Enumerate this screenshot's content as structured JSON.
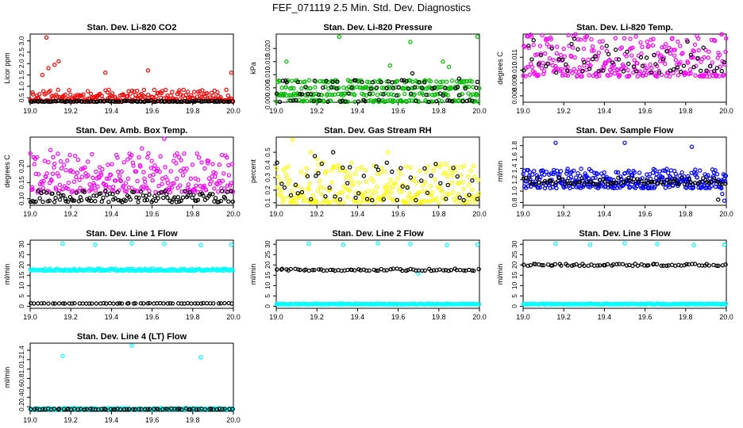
{
  "page": {
    "title": "FEF_071119  2.5 Min. Std. Dev. Diagnostics"
  },
  "chart_data": [
    {
      "type": "scatter",
      "title": "Stan. Dev. Li-820 CO2",
      "ylabel": "Licor ppm",
      "xlim": [
        19.0,
        20.0
      ],
      "ylim": [
        0.3,
        3.3
      ],
      "xticks": [
        "19.0",
        "19.2",
        "19.4",
        "19.6",
        "19.8",
        "20.0"
      ],
      "yticks": [
        "0.5",
        "1.0",
        "1.5",
        "2.0",
        "2.5",
        "3.0"
      ],
      "series": [
        {
          "color": "#ff0000",
          "generator": {
            "base": 0.35,
            "spread": 0.5,
            "floor": 0.32,
            "count": 220,
            "seed": 11
          },
          "outliers": [
            [
              19.08,
              3.15
            ],
            [
              19.12,
              1.95
            ],
            [
              19.14,
              2.1
            ],
            [
              19.09,
              1.8
            ],
            [
              19.58,
              1.7
            ],
            [
              19.99,
              1.6
            ],
            [
              19.37,
              1.6
            ],
            [
              19.06,
              1.5
            ]
          ]
        },
        {
          "color": "#000000",
          "generator": {
            "base": 0.32,
            "spread": 0.05,
            "floor": 0.3,
            "count": 110,
            "seed": 12
          },
          "outliers": []
        }
      ]
    },
    {
      "type": "scatter",
      "title": "Stan. Dev. Li-820 Pressure",
      "ylabel": "kPa",
      "xlim": [
        19.0,
        20.0
      ],
      "ylim": [
        -0.0005,
        0.0255
      ],
      "xticks": [
        "19.0",
        "19.2",
        "19.4",
        "19.6",
        "19.8",
        "20.0"
      ],
      "yticks": [
        "0.000",
        "0.005",
        "0.010",
        "0.015",
        "0.020"
      ],
      "series": [
        {
          "color": "#00bb00",
          "generator": {
            "bands": [
              0.0,
              0.0025,
              0.005,
              0.0075
            ],
            "count": 300,
            "seed": 21
          },
          "outliers": [
            [
              19.31,
              0.0245
            ],
            [
              19.99,
              0.0245
            ],
            [
              19.66,
              0.0225
            ],
            [
              19.05,
              0.015
            ],
            [
              19.56,
              0.0135
            ],
            [
              19.82,
              0.015
            ],
            [
              19.85,
              0.013
            ]
          ]
        },
        {
          "color": "#000000",
          "generator": {
            "bands": [
              0.0,
              0.0025,
              0.005,
              0.0075
            ],
            "count": 80,
            "seed": 22
          },
          "outliers": [
            [
              19.67,
              0.0105
            ],
            [
              19.9,
              0.0085
            ]
          ]
        }
      ]
    },
    {
      "type": "scatter",
      "title": "Stan. Dev. Li-820 Temp.",
      "ylabel": "degrees C",
      "xlim": [
        19.0,
        20.0
      ],
      "ylim": [
        0.0075,
        0.0128
      ],
      "xticks": [
        "19.0",
        "19.2",
        "19.4",
        "19.6",
        "19.8",
        "20.0"
      ],
      "yticks": [
        "0.008",
        "0.009",
        "0.010",
        "0.011"
      ],
      "series": [
        {
          "color": "#ff00ff",
          "generator": {
            "base": 0.0095,
            "spread": 0.0033,
            "floor": 0.0076,
            "count": 300,
            "seed": 31
          },
          "outliers": []
        },
        {
          "color": "#000000",
          "generator": {
            "base": 0.0098,
            "spread": 0.0027,
            "floor": 0.0085,
            "count": 60,
            "seed": 32
          },
          "outliers": []
        }
      ]
    },
    {
      "type": "scatter",
      "title": "Stan. Dev. Amb. Box Temp.",
      "ylabel": "degrees C",
      "xlim": [
        19.0,
        20.0
      ],
      "ylim": [
        0.08,
        0.29
      ],
      "xticks": [
        "19.0",
        "19.2",
        "19.4",
        "19.6",
        "19.8",
        "20.0"
      ],
      "yticks": [
        "0.10",
        "0.15",
        "0.20"
      ],
      "series": [
        {
          "color": "#ff00ff",
          "generator": {
            "base": 0.12,
            "spread": 0.12,
            "floor": 0.1,
            "count": 260,
            "seed": 41
          },
          "outliers": [
            [
              19.66,
              0.285
            ],
            [
              19.55,
              0.255
            ],
            [
              19.1,
              0.25
            ]
          ]
        },
        {
          "color": "#000000",
          "generator": {
            "base": 0.09,
            "spread": 0.035,
            "floor": 0.09,
            "count": 120,
            "seed": 42
          },
          "outliers": []
        }
      ]
    },
    {
      "type": "scatter",
      "title": "Stan. Dev. Gas Stream RH",
      "ylabel": "percent",
      "xlim": [
        19.0,
        20.0
      ],
      "ylim": [
        0.08,
        0.62
      ],
      "xticks": [
        "19.0",
        "19.2",
        "19.4",
        "19.6",
        "19.8",
        "20.0"
      ],
      "yticks": [
        "0.1",
        "0.2",
        "0.3",
        "0.4",
        "0.5"
      ],
      "series": [
        {
          "color": "#ffff00",
          "generator": {
            "base": 0.1,
            "spread": 0.32,
            "floor": 0.1,
            "count": 260,
            "seed": 51
          },
          "outliers": [
            [
              19.08,
              0.6
            ],
            [
              19.17,
              0.5
            ],
            [
              19.2,
              0.45
            ],
            [
              19.55,
              0.5
            ]
          ]
        },
        {
          "color": "#000000",
          "generator": {
            "base": 0.12,
            "spread": 0.3,
            "floor": 0.12,
            "count": 50,
            "seed": 52
          },
          "outliers": [
            [
              19.28,
              0.5
            ],
            [
              19.19,
              0.47
            ]
          ]
        }
      ]
    },
    {
      "type": "scatter",
      "title": "Stan. Dev. Sample Flow",
      "ylabel": "ml/min",
      "xlim": [
        19.0,
        20.0
      ],
      "ylim": [
        0.75,
        1.95
      ],
      "xticks": [
        "19.0",
        "19.2",
        "19.4",
        "19.6",
        "19.8",
        "20.0"
      ],
      "yticks": [
        "0.8",
        "1.0",
        "1.2",
        "1.4",
        "1.6",
        "1.8"
      ],
      "series": [
        {
          "color": "#0000ff",
          "generator": {
            "base": 1.05,
            "spread": 0.35,
            "floor": 0.95,
            "count": 320,
            "seed": 61
          },
          "outliers": [
            [
              19.16,
              1.85
            ],
            [
              19.5,
              1.85
            ],
            [
              19.83,
              1.78
            ],
            [
              19.99,
              0.83
            ],
            [
              19.98,
              0.95
            ]
          ]
        },
        {
          "color": "#000000",
          "generator": {
            "base": 1.12,
            "spread": 0.12,
            "floor": 1.05,
            "count": 90,
            "seed": 62
          },
          "outliers": [
            [
              19.96,
              0.85
            ]
          ]
        }
      ]
    },
    {
      "type": "scatter",
      "title": "Stan. Dev. Line 1 Flow",
      "ylabel": "ml/min",
      "xlim": [
        19.0,
        20.0
      ],
      "ylim": [
        -1,
        32
      ],
      "xticks": [
        "19.0",
        "19.2",
        "19.4",
        "19.6",
        "19.8",
        "20.0"
      ],
      "yticks": [
        "0",
        "5",
        "10",
        "15",
        "20",
        "25",
        "30"
      ],
      "series": [
        {
          "color": "#00ffff",
          "generator": {
            "base": 17.2,
            "spread": 1.0,
            "floor": 16.8,
            "count": 200,
            "seed": 71
          },
          "outliers": [
            [
              19.16,
              30.3
            ],
            [
              19.32,
              29.8
            ],
            [
              19.5,
              30.5
            ],
            [
              19.66,
              30.2
            ],
            [
              19.84,
              29.6
            ],
            [
              19.99,
              29.8
            ]
          ]
        },
        {
          "color": "#000000",
          "generator": {
            "base": 1.3,
            "spread": 0.2,
            "floor": 1.3,
            "count": 60,
            "seed": 72
          },
          "outliers": []
        }
      ]
    },
    {
      "type": "scatter",
      "title": "Stan. Dev. Line 2 Flow",
      "ylabel": "ml/min",
      "xlim": [
        19.0,
        20.0
      ],
      "ylim": [
        -1,
        32
      ],
      "xticks": [
        "19.0",
        "19.2",
        "19.4",
        "19.6",
        "19.8",
        "20.0"
      ],
      "yticks": [
        "0",
        "5",
        "10",
        "15",
        "20",
        "25",
        "30"
      ],
      "series": [
        {
          "color": "#00ffff",
          "generator": {
            "base": 0.9,
            "spread": 0.4,
            "floor": 0.9,
            "count": 200,
            "seed": 81
          },
          "outliers": [
            [
              19.16,
              30.3
            ],
            [
              19.33,
              29.8
            ],
            [
              19.5,
              30.5
            ],
            [
              19.66,
              30.1
            ],
            [
              19.84,
              29.6
            ],
            [
              19.99,
              29.8
            ],
            [
              19.7,
              16.0
            ]
          ]
        },
        {
          "color": "#000000",
          "generator": {
            "base": 17.2,
            "spread": 1.0,
            "floor": 17.0,
            "count": 70,
            "seed": 82
          },
          "outliers": []
        }
      ]
    },
    {
      "type": "scatter",
      "title": "Stan. Dev. Line 3 Flow",
      "ylabel": "ml/min",
      "xlim": [
        19.0,
        20.0
      ],
      "ylim": [
        -1,
        32
      ],
      "xticks": [
        "19.0",
        "19.2",
        "19.4",
        "19.6",
        "19.8",
        "20.0"
      ],
      "yticks": [
        "0",
        "5",
        "10",
        "15",
        "20",
        "25",
        "30"
      ],
      "series": [
        {
          "color": "#00ffff",
          "generator": {
            "base": 0.9,
            "spread": 0.4,
            "floor": 0.9,
            "count": 200,
            "seed": 91
          },
          "outliers": [
            [
              19.16,
              30.3
            ],
            [
              19.33,
              29.8
            ],
            [
              19.5,
              30.5
            ],
            [
              19.66,
              30.1
            ],
            [
              19.84,
              29.6
            ],
            [
              19.99,
              29.8
            ]
          ]
        },
        {
          "color": "#000000",
          "generator": {
            "base": 19.6,
            "spread": 1.0,
            "floor": 19.4,
            "count": 70,
            "seed": 92
          },
          "outliers": []
        }
      ]
    },
    {
      "type": "scatter",
      "title": "Stan. Dev. Line 4 (LT) Flow",
      "ylabel": "ml/min",
      "xlim": [
        19.0,
        20.0
      ],
      "ylim": [
        0.1,
        1.55
      ],
      "xticks": [
        "19.0",
        "19.2",
        "19.4",
        "19.6",
        "19.8",
        "20.0"
      ],
      "yticks": [
        "0.2",
        "0.4",
        "0.6",
        "0.8",
        "1.0",
        "1.2",
        "1.4"
      ],
      "series": [
        {
          "color": "#00ffff",
          "generator": {
            "base": 0.14,
            "spread": 0.03,
            "floor": 0.14,
            "count": 200,
            "seed": 101
          },
          "outliers": [
            [
              19.16,
              1.28
            ],
            [
              19.5,
              1.5
            ],
            [
              19.84,
              1.25
            ]
          ]
        },
        {
          "color": "#000000",
          "generator": {
            "base": 0.14,
            "spread": 0.02,
            "floor": 0.14,
            "count": 70,
            "seed": 102
          },
          "outliers": []
        }
      ]
    }
  ]
}
